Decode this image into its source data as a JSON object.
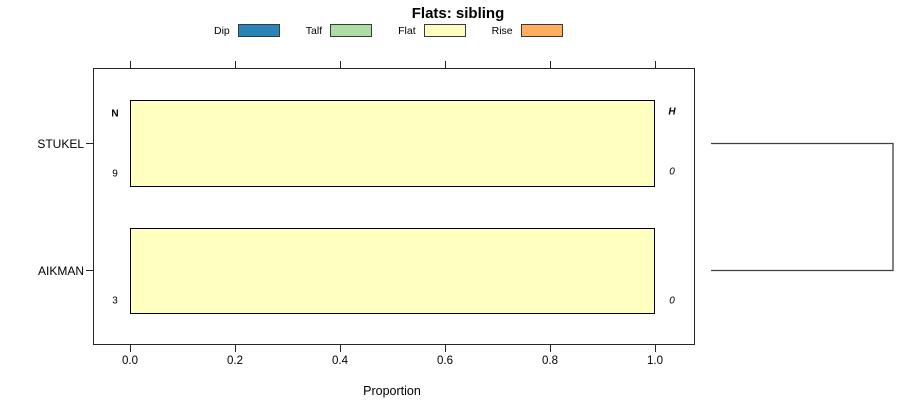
{
  "title": "Flats: sibling",
  "legend": {
    "items": [
      {
        "label": "Dip",
        "color": "#2B83BA"
      },
      {
        "label": "Talf",
        "color": "#ABDDA4"
      },
      {
        "label": "Flat",
        "color": "#FFFFBF"
      },
      {
        "label": "Rise",
        "color": "#FDAE61"
      }
    ]
  },
  "chart_data": {
    "type": "bar",
    "orientation": "horizontal-stacked",
    "title": "Flats: sibling",
    "xlabel": "Proportion",
    "xlim": [
      0,
      1
    ],
    "x_ticks": [
      "0.0",
      "0.2",
      "0.4",
      "0.6",
      "0.8",
      "1.0"
    ],
    "categories": [
      "STUKEL",
      "AIKMAN"
    ],
    "series": [
      {
        "name": "Dip",
        "color": "#2B83BA",
        "values": [
          0,
          0
        ]
      },
      {
        "name": "Talf",
        "color": "#ABDDA4",
        "values": [
          0,
          0
        ]
      },
      {
        "name": "Flat",
        "color": "#FFFFBF",
        "values": [
          1.0,
          1.0
        ]
      },
      {
        "name": "Rise",
        "color": "#FDAE61",
        "values": [
          0,
          0
        ]
      }
    ],
    "row_annotations": {
      "left_header": "N",
      "right_header": "H",
      "left_values": [
        "9",
        "3"
      ],
      "right_values": [
        "0",
        "0"
      ]
    },
    "legend_position": "top",
    "grid": false,
    "right_graphic": "two-leaf dendrogram joining STUKEL and AIKMAN rows at the right edge"
  }
}
